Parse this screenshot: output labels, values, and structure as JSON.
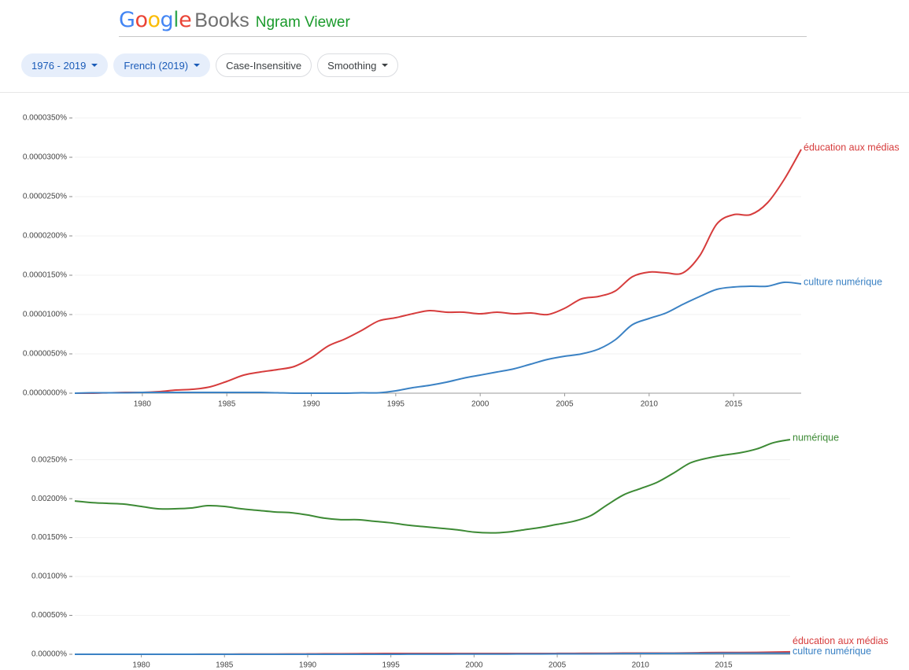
{
  "header": {
    "logo": "Google",
    "product": "Books",
    "title": "Ngram Viewer"
  },
  "controls": [
    {
      "label": "1976 - 2019",
      "dropdown": true
    },
    {
      "label": "French (2019)",
      "dropdown": true
    },
    {
      "label": "Case-Insensitive",
      "dropdown": false
    },
    {
      "label": "Smoothing",
      "dropdown": true
    }
  ],
  "chart_data": [
    {
      "type": "line",
      "x": [
        1976,
        1977,
        1978,
        1979,
        1980,
        1981,
        1982,
        1983,
        1984,
        1985,
        1986,
        1987,
        1988,
        1989,
        1990,
        1991,
        1992,
        1993,
        1994,
        1995,
        1996,
        1997,
        1998,
        1999,
        2000,
        2001,
        2002,
        2003,
        2004,
        2005,
        2006,
        2007,
        2008,
        2009,
        2010,
        2011,
        2012,
        2013,
        2014,
        2015,
        2016,
        2017,
        2018,
        2019
      ],
      "xlim": [
        1976,
        2019
      ],
      "xticks": [
        1980,
        1985,
        1990,
        1995,
        2000,
        2005,
        2010,
        2015
      ],
      "ylim": [
        0,
        3.5e-05
      ],
      "yticks": [
        {
          "value": 0,
          "label": "0.0000000%"
        },
        {
          "value": 5e-06,
          "label": "0.0000050%"
        },
        {
          "value": 1e-05,
          "label": "0.0000100%"
        },
        {
          "value": 1.5e-05,
          "label": "0.0000150%"
        },
        {
          "value": 2e-05,
          "label": "0.0000200%"
        },
        {
          "value": 2.5e-05,
          "label": "0.0000250%"
        },
        {
          "value": 3e-05,
          "label": "0.0000300%"
        },
        {
          "value": 3.5e-05,
          "label": "0.0000350%"
        }
      ],
      "grid": true,
      "series": [
        {
          "name": "éducation aux médias",
          "color": "#d63c3c",
          "values": [
            0,
            0,
            5e-08,
            1e-07,
            1e-07,
            2e-07,
            4e-07,
            5e-07,
            8e-07,
            1.5e-06,
            2.3e-06,
            2.7e-06,
            3e-06,
            3.4e-06,
            4.5e-06,
            6e-06,
            6.9e-06,
            8e-06,
            9.2e-06,
            9.6e-06,
            1.01e-05,
            1.05e-05,
            1.03e-05,
            1.03e-05,
            1.01e-05,
            1.03e-05,
            1.01e-05,
            1.02e-05,
            1e-05,
            1.08e-05,
            1.2e-05,
            1.23e-05,
            1.3e-05,
            1.48e-05,
            1.54e-05,
            1.53e-05,
            1.53e-05,
            1.75e-05,
            2.15e-05,
            2.27e-05,
            2.27e-05,
            2.42e-05,
            2.72e-05,
            3.1e-05
          ]
        },
        {
          "name": "culture numérique",
          "color": "#3b82c4",
          "values": [
            0,
            5e-08,
            5e-08,
            5e-08,
            1e-07,
            1e-07,
            1e-07,
            1e-07,
            1e-07,
            1e-07,
            1e-07,
            1e-07,
            5e-08,
            0,
            0,
            0,
            0,
            5e-08,
            5e-08,
            3e-07,
            7e-07,
            1e-06,
            1.4e-06,
            1.9e-06,
            2.3e-06,
            2.7e-06,
            3.1e-06,
            3.7e-06,
            4.3e-06,
            4.7e-06,
            5e-06,
            5.6e-06,
            6.8e-06,
            8.7e-06,
            9.5e-06,
            1.02e-05,
            1.13e-05,
            1.23e-05,
            1.32e-05,
            1.35e-05,
            1.36e-05,
            1.36e-05,
            1.41e-05,
            1.39e-05
          ]
        }
      ]
    },
    {
      "type": "line",
      "x": [
        1976,
        1977,
        1978,
        1979,
        1980,
        1981,
        1982,
        1983,
        1984,
        1985,
        1986,
        1987,
        1988,
        1989,
        1990,
        1991,
        1992,
        1993,
        1994,
        1995,
        1996,
        1997,
        1998,
        1999,
        2000,
        2001,
        2002,
        2003,
        2004,
        2005,
        2006,
        2007,
        2008,
        2009,
        2010,
        2011,
        2012,
        2013,
        2014,
        2015,
        2016,
        2017,
        2018,
        2019
      ],
      "xlim": [
        1976,
        2019
      ],
      "xticks": [
        1980,
        1985,
        1990,
        1995,
        2000,
        2005,
        2010,
        2015
      ],
      "ylim": [
        0,
        0.0028
      ],
      "yticks": [
        {
          "value": 0,
          "label": "0.00000%"
        },
        {
          "value": 0.0005,
          "label": "0.00050%"
        },
        {
          "value": 0.001,
          "label": "0.00100%"
        },
        {
          "value": 0.0015,
          "label": "0.00150%"
        },
        {
          "value": 0.002,
          "label": "0.00200%"
        },
        {
          "value": 0.0025,
          "label": "0.00250%"
        }
      ],
      "grid": true,
      "series": [
        {
          "name": "numérique",
          "color": "#3d8a35",
          "values": [
            0.00197,
            0.00195,
            0.00194,
            0.00193,
            0.0019,
            0.00187,
            0.00187,
            0.00188,
            0.00191,
            0.0019,
            0.00187,
            0.00185,
            0.00183,
            0.00182,
            0.00179,
            0.00175,
            0.00173,
            0.00173,
            0.00171,
            0.00169,
            0.00166,
            0.00164,
            0.00162,
            0.0016,
            0.00157,
            0.00156,
            0.00157,
            0.0016,
            0.00163,
            0.00167,
            0.00171,
            0.00178,
            0.00192,
            0.00205,
            0.00213,
            0.00221,
            0.00233,
            0.00246,
            0.00252,
            0.00256,
            0.00259,
            0.00264,
            0.00272,
            0.00276
          ]
        },
        {
          "name": "éducation aux médias",
          "color": "#d63c3c",
          "values": [
            0,
            0,
            5e-08,
            1e-07,
            1e-07,
            2e-07,
            4e-07,
            5e-07,
            8e-07,
            1.5e-06,
            2.3e-06,
            2.7e-06,
            3e-06,
            3.4e-06,
            4.5e-06,
            6e-06,
            6.9e-06,
            8e-06,
            9.2e-06,
            9.6e-06,
            1.01e-05,
            1.05e-05,
            1.03e-05,
            1.03e-05,
            1.01e-05,
            1.03e-05,
            1.01e-05,
            1.02e-05,
            1e-05,
            1.08e-05,
            1.2e-05,
            1.23e-05,
            1.3e-05,
            1.48e-05,
            1.54e-05,
            1.53e-05,
            1.53e-05,
            1.75e-05,
            2.15e-05,
            2.27e-05,
            2.27e-05,
            2.42e-05,
            2.72e-05,
            3.1e-05
          ]
        },
        {
          "name": "culture numérique",
          "color": "#3b82c4",
          "values": [
            0,
            5e-08,
            5e-08,
            5e-08,
            1e-07,
            1e-07,
            1e-07,
            1e-07,
            1e-07,
            1e-07,
            1e-07,
            1e-07,
            5e-08,
            0,
            0,
            0,
            0,
            5e-08,
            5e-08,
            3e-07,
            7e-07,
            1e-06,
            1.4e-06,
            1.9e-06,
            2.3e-06,
            2.7e-06,
            3.1e-06,
            3.7e-06,
            4.3e-06,
            4.7e-06,
            5e-06,
            5.6e-06,
            6.8e-06,
            8.7e-06,
            9.5e-06,
            1.02e-05,
            1.13e-05,
            1.23e-05,
            1.32e-05,
            1.35e-05,
            1.36e-05,
            1.36e-05,
            1.41e-05,
            1.39e-05
          ]
        }
      ]
    }
  ]
}
